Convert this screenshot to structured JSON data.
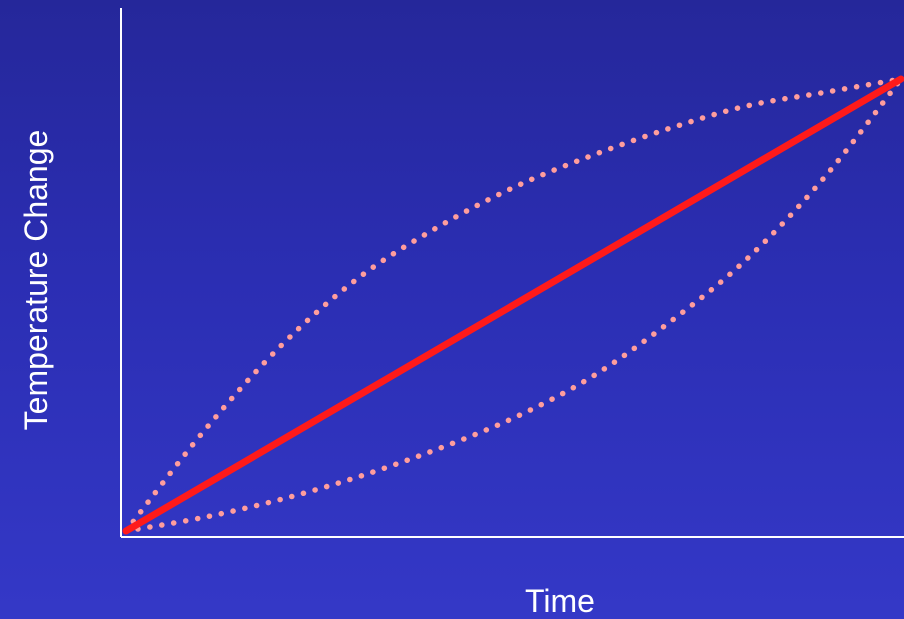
{
  "chart_data": {
    "type": "line",
    "xlabel": "Time",
    "ylabel": "Temperature Change",
    "xlim": [
      0,
      1
    ],
    "ylim": [
      0,
      1
    ],
    "grid": false,
    "series": [
      {
        "style": "solid",
        "color": "#ff1a1a",
        "x": [
          0,
          1
        ],
        "y": [
          0,
          1
        ]
      },
      {
        "style": "dotted",
        "color": "#ff9d9d",
        "x": [
          0,
          0.1,
          0.2,
          0.3,
          0.4,
          0.5,
          0.6,
          0.7,
          0.8,
          0.9,
          1.0
        ],
        "y": [
          0,
          0.22,
          0.41,
          0.56,
          0.67,
          0.76,
          0.83,
          0.89,
          0.94,
          0.97,
          1.0
        ]
      },
      {
        "style": "dotted",
        "color": "#ff9d9d",
        "x": [
          0,
          0.1,
          0.2,
          0.3,
          0.4,
          0.5,
          0.6,
          0.7,
          0.8,
          0.9,
          1.0
        ],
        "y": [
          0,
          0.03,
          0.07,
          0.12,
          0.18,
          0.25,
          0.34,
          0.46,
          0.6,
          0.78,
          1.0
        ]
      }
    ]
  },
  "colors": {
    "axis": "#ffffff",
    "text": "#ffffff"
  }
}
